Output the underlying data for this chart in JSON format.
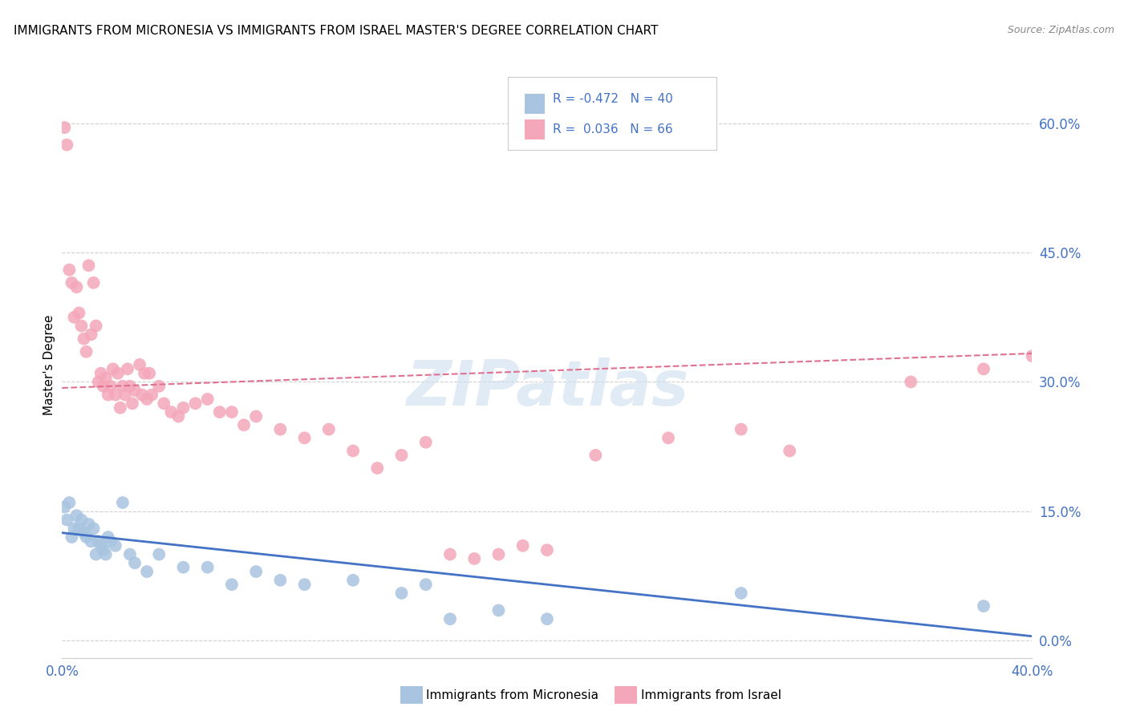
{
  "title": "IMMIGRANTS FROM MICRONESIA VS IMMIGRANTS FROM ISRAEL MASTER'S DEGREE CORRELATION CHART",
  "source": "Source: ZipAtlas.com",
  "ylabel": "Master's Degree",
  "right_yticks": [
    "0.0%",
    "15.0%",
    "30.0%",
    "45.0%",
    "60.0%"
  ],
  "right_ytick_vals": [
    0.0,
    0.15,
    0.3,
    0.45,
    0.6
  ],
  "xlim": [
    0.0,
    0.4
  ],
  "ylim": [
    -0.02,
    0.66
  ],
  "watermark": "ZIPatlas",
  "blue_color": "#a8c4e0",
  "pink_color": "#f4a7b9",
  "blue_trend_color": "#4472c4",
  "pink_trend_color": "#e07090",
  "legend_text_color": "#4472c4",
  "axis_label_color": "#4472c4",
  "tick_color": "#4472c4",
  "grid_color": "#d0d0d0",
  "background_color": "#ffffff",
  "blue_R": -0.472,
  "blue_N": 40,
  "pink_R": 0.036,
  "pink_N": 66,
  "blue_x": [
    0.001,
    0.002,
    0.003,
    0.004,
    0.005,
    0.006,
    0.007,
    0.008,
    0.009,
    0.01,
    0.011,
    0.012,
    0.013,
    0.014,
    0.015,
    0.016,
    0.017,
    0.018,
    0.019,
    0.02,
    0.022,
    0.025,
    0.028,
    0.03,
    0.035,
    0.04,
    0.05,
    0.06,
    0.07,
    0.08,
    0.09,
    0.1,
    0.12,
    0.14,
    0.15,
    0.16,
    0.18,
    0.2,
    0.28,
    0.38
  ],
  "blue_y": [
    0.155,
    0.14,
    0.16,
    0.12,
    0.13,
    0.145,
    0.13,
    0.14,
    0.125,
    0.12,
    0.135,
    0.115,
    0.13,
    0.1,
    0.115,
    0.11,
    0.105,
    0.1,
    0.12,
    0.115,
    0.11,
    0.16,
    0.1,
    0.09,
    0.08,
    0.1,
    0.085,
    0.085,
    0.065,
    0.08,
    0.07,
    0.065,
    0.07,
    0.055,
    0.065,
    0.025,
    0.035,
    0.025,
    0.055,
    0.04
  ],
  "pink_x": [
    0.001,
    0.002,
    0.003,
    0.004,
    0.005,
    0.006,
    0.007,
    0.008,
    0.009,
    0.01,
    0.011,
    0.012,
    0.013,
    0.014,
    0.015,
    0.016,
    0.017,
    0.018,
    0.019,
    0.02,
    0.021,
    0.022,
    0.023,
    0.024,
    0.025,
    0.026,
    0.027,
    0.028,
    0.029,
    0.03,
    0.032,
    0.033,
    0.034,
    0.035,
    0.036,
    0.037,
    0.04,
    0.042,
    0.045,
    0.048,
    0.05,
    0.055,
    0.06,
    0.065,
    0.07,
    0.075,
    0.08,
    0.09,
    0.1,
    0.11,
    0.12,
    0.13,
    0.14,
    0.15,
    0.16,
    0.17,
    0.18,
    0.19,
    0.2,
    0.22,
    0.25,
    0.28,
    0.3,
    0.35,
    0.38,
    0.4
  ],
  "pink_y": [
    0.595,
    0.575,
    0.43,
    0.415,
    0.375,
    0.41,
    0.38,
    0.365,
    0.35,
    0.335,
    0.435,
    0.355,
    0.415,
    0.365,
    0.3,
    0.31,
    0.295,
    0.305,
    0.285,
    0.295,
    0.315,
    0.285,
    0.31,
    0.27,
    0.295,
    0.285,
    0.315,
    0.295,
    0.275,
    0.29,
    0.32,
    0.285,
    0.31,
    0.28,
    0.31,
    0.285,
    0.295,
    0.275,
    0.265,
    0.26,
    0.27,
    0.275,
    0.28,
    0.265,
    0.265,
    0.25,
    0.26,
    0.245,
    0.235,
    0.245,
    0.22,
    0.2,
    0.215,
    0.23,
    0.1,
    0.095,
    0.1,
    0.11,
    0.105,
    0.215,
    0.235,
    0.245,
    0.22,
    0.3,
    0.315,
    0.33
  ],
  "blue_trend_x": [
    0.0,
    0.4
  ],
  "blue_trend_y": [
    0.125,
    0.005
  ],
  "pink_trend_x": [
    0.0,
    0.4
  ],
  "pink_trend_y": [
    0.293,
    0.333
  ]
}
